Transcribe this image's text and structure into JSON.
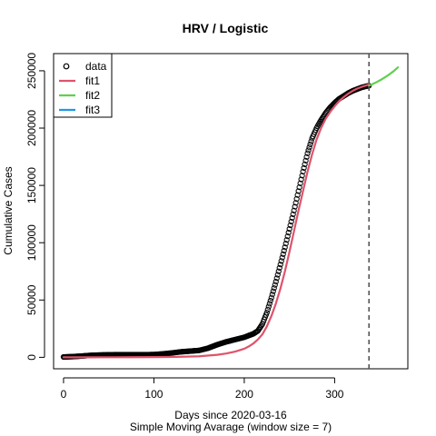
{
  "chart_data": {
    "type": "line",
    "title": "HRV / Logistic",
    "xlabel": "Days since 2020-03-16",
    "xlabel2": "Simple Moving Avarage (window size = 7)",
    "ylabel": "Cumulative Cases",
    "xlim": [
      -11,
      381
    ],
    "ylim": [
      -10000,
      265000
    ],
    "xticks": [
      0,
      100,
      200,
      300
    ],
    "yticks": [
      0,
      50000,
      100000,
      150000,
      200000,
      250000
    ],
    "cutoff_x": 338,
    "legend": {
      "position": "top-left",
      "entries": [
        {
          "label": "data",
          "kind": "point",
          "color": "#000000"
        },
        {
          "label": "fit1",
          "kind": "line",
          "color": "#DF536B"
        },
        {
          "label": "fit2",
          "kind": "line",
          "color": "#61D04F"
        },
        {
          "label": "fit3",
          "kind": "line",
          "color": "#2297E6"
        }
      ]
    },
    "series": [
      {
        "name": "data",
        "kind": "points",
        "color": "#000000",
        "x": [
          0,
          10,
          20,
          30,
          40,
          50,
          60,
          70,
          80,
          90,
          100,
          110,
          120,
          130,
          140,
          150,
          160,
          170,
          180,
          190,
          200,
          210,
          215,
          220,
          225,
          230,
          235,
          240,
          245,
          250,
          255,
          260,
          265,
          270,
          275,
          280,
          285,
          290,
          295,
          300,
          305,
          310,
          315,
          320,
          325,
          330,
          335,
          338
        ],
        "y": [
          300,
          600,
          1100,
          1700,
          2000,
          2200,
          2300,
          2300,
          2300,
          2300,
          2400,
          3000,
          3800,
          4800,
          5400,
          6000,
          8000,
          11000,
          13500,
          15500,
          17500,
          20500,
          23000,
          29000,
          39000,
          52000,
          66000,
          81000,
          96000,
          112000,
          128000,
          145000,
          162000,
          178000,
          191000,
          200000,
          207000,
          213000,
          218000,
          222000,
          225500,
          228000,
          230500,
          232500,
          234000,
          235500,
          236500,
          237000
        ]
      },
      {
        "name": "fit1",
        "kind": "line",
        "color": "#DF536B",
        "x": [
          0,
          25,
          50,
          75,
          100,
          125,
          150,
          170,
          180,
          190,
          200,
          205,
          210,
          215,
          220,
          225,
          230,
          235,
          240,
          245,
          250,
          255,
          260,
          265,
          270,
          275,
          280,
          285,
          290,
          295,
          300,
          305,
          310,
          315,
          320,
          325,
          330,
          338
        ],
        "y": [
          0,
          0,
          50,
          100,
          200,
          400,
          900,
          2200,
          3300,
          5000,
          7500,
          9500,
          12000,
          15500,
          20000,
          27000,
          36000,
          47000,
          60000,
          75000,
          92000,
          110000,
          128000,
          145000,
          162000,
          177000,
          190000,
          200000,
          208000,
          214000,
          219000,
          223500,
          227000,
          230000,
          232500,
          234500,
          236000,
          238000
        ]
      },
      {
        "name": "fit2",
        "kind": "line",
        "color": "#61D04F",
        "x": [
          338,
          345,
          352,
          359,
          365,
          370
        ],
        "y": [
          237000,
          239500,
          242500,
          246000,
          249500,
          253000
        ]
      },
      {
        "name": "fit3",
        "kind": "line",
        "color": "#2297E6",
        "x": [],
        "y": []
      }
    ]
  }
}
